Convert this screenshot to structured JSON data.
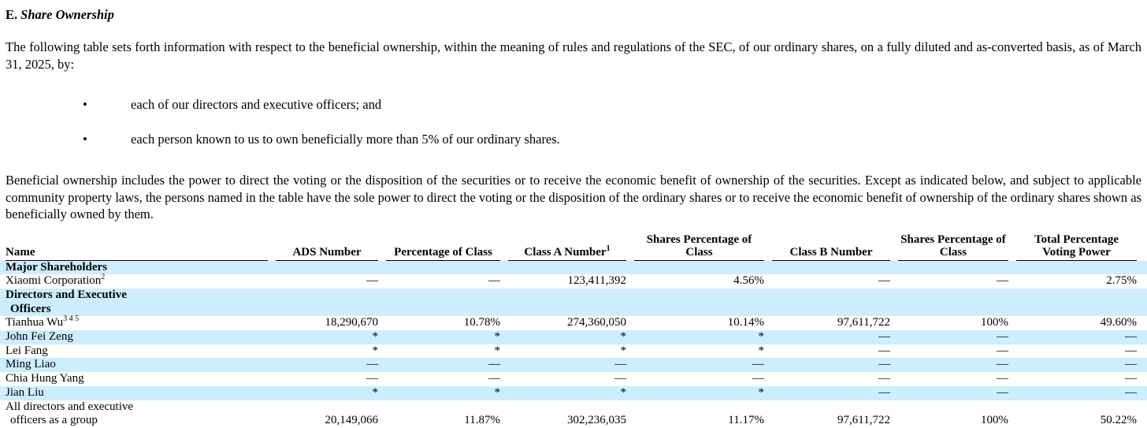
{
  "colors": {
    "row_highlight": "#CCEEFF",
    "text": "#000000",
    "header_rule": "#000000",
    "background": "#FFFFFF"
  },
  "doc": {
    "heading_prefix": "E.",
    "heading_title": "Share Ownership",
    "intro": "The following table sets forth information with respect to the beneficial ownership, within the meaning of rules and regulations of the SEC, of our ordinary shares, on a fully diluted and as-converted basis, as of March 31, 2025, by:",
    "bullet_glyph": "•",
    "bullets": [
      "each of our directors and executive officers; and",
      "each person known to us to own beneficially more than 5% of our ordinary shares."
    ],
    "body_paragraph": "Beneficial ownership includes the power to direct the voting or the disposition of the securities or to receive the economic benefit of ownership of the securities. Except as indicated below, and subject to applicable community property laws, the persons named in the table have the sole power to direct the voting or the disposition of the ordinary shares or to receive the economic benefit of ownership of the ordinary shares shown as beneficially owned by them."
  },
  "table": {
    "columns": [
      {
        "lines": [
          "Name"
        ],
        "align": "left"
      },
      {
        "lines": [
          "ADS Number"
        ]
      },
      {
        "lines": [
          "Percentage of Class"
        ]
      },
      {
        "lines": [
          "Class A Number"
        ],
        "sup": "1"
      },
      {
        "lines": [
          "Shares Percentage of",
          "Class"
        ]
      },
      {
        "lines": [
          "Class B Number"
        ]
      },
      {
        "lines": [
          "Shares Percentage of",
          "Class"
        ]
      },
      {
        "lines": [
          "Total Percentage",
          "Voting Power"
        ]
      }
    ],
    "rows": [
      {
        "section": true,
        "bold": true,
        "shaded": true,
        "lines": [
          "Major Shareholders"
        ],
        "cells": [
          "",
          "",
          "",
          "",
          "",
          "",
          ""
        ]
      },
      {
        "shaded": false,
        "lines": [
          "Xiaomi Corporation"
        ],
        "sup": "2",
        "cells": [
          "—",
          "—",
          "123,411,392",
          "4.56%",
          "—",
          "—",
          "2.75%"
        ]
      },
      {
        "section": true,
        "bold": true,
        "shaded": true,
        "lines": [
          "Directors and Executive",
          "Officers"
        ],
        "cells": [
          "",
          "",
          "",
          "",
          "",
          "",
          ""
        ]
      },
      {
        "shaded": false,
        "lines": [
          "Tianhua Wu"
        ],
        "sup": "3 4 5",
        "cells": [
          "18,290,670",
          "10.78%",
          "274,360,050",
          "10.14%",
          "97,611,722",
          "100%",
          "49.60%"
        ]
      },
      {
        "shaded": true,
        "lines": [
          "John Fei Zeng"
        ],
        "cells": [
          "*",
          "*",
          "*",
          "*",
          "—",
          "—",
          "—"
        ]
      },
      {
        "shaded": false,
        "lines": [
          "Lei Fang"
        ],
        "cells": [
          "*",
          "*",
          "*",
          "*",
          "—",
          "—",
          "—"
        ]
      },
      {
        "shaded": true,
        "lines": [
          "Ming Liao"
        ],
        "cells": [
          "—",
          "—",
          "—",
          "—",
          "—",
          "—",
          "—"
        ]
      },
      {
        "shaded": false,
        "lines": [
          "Chia Hung Yang"
        ],
        "cells": [
          "—",
          "—",
          "—",
          "—",
          "—",
          "—",
          "—"
        ]
      },
      {
        "shaded": true,
        "lines": [
          "Jian Liu"
        ],
        "cells": [
          "*",
          "*",
          "*",
          "*",
          "—",
          "—",
          "—"
        ]
      },
      {
        "shaded": false,
        "lines": [
          "All directors and executive",
          "officers as a group"
        ],
        "cells": [
          "20,149,066",
          "11.87%",
          "302,236,035",
          "11.17%",
          "97,611,722",
          "100%",
          "50.22%"
        ]
      }
    ]
  }
}
